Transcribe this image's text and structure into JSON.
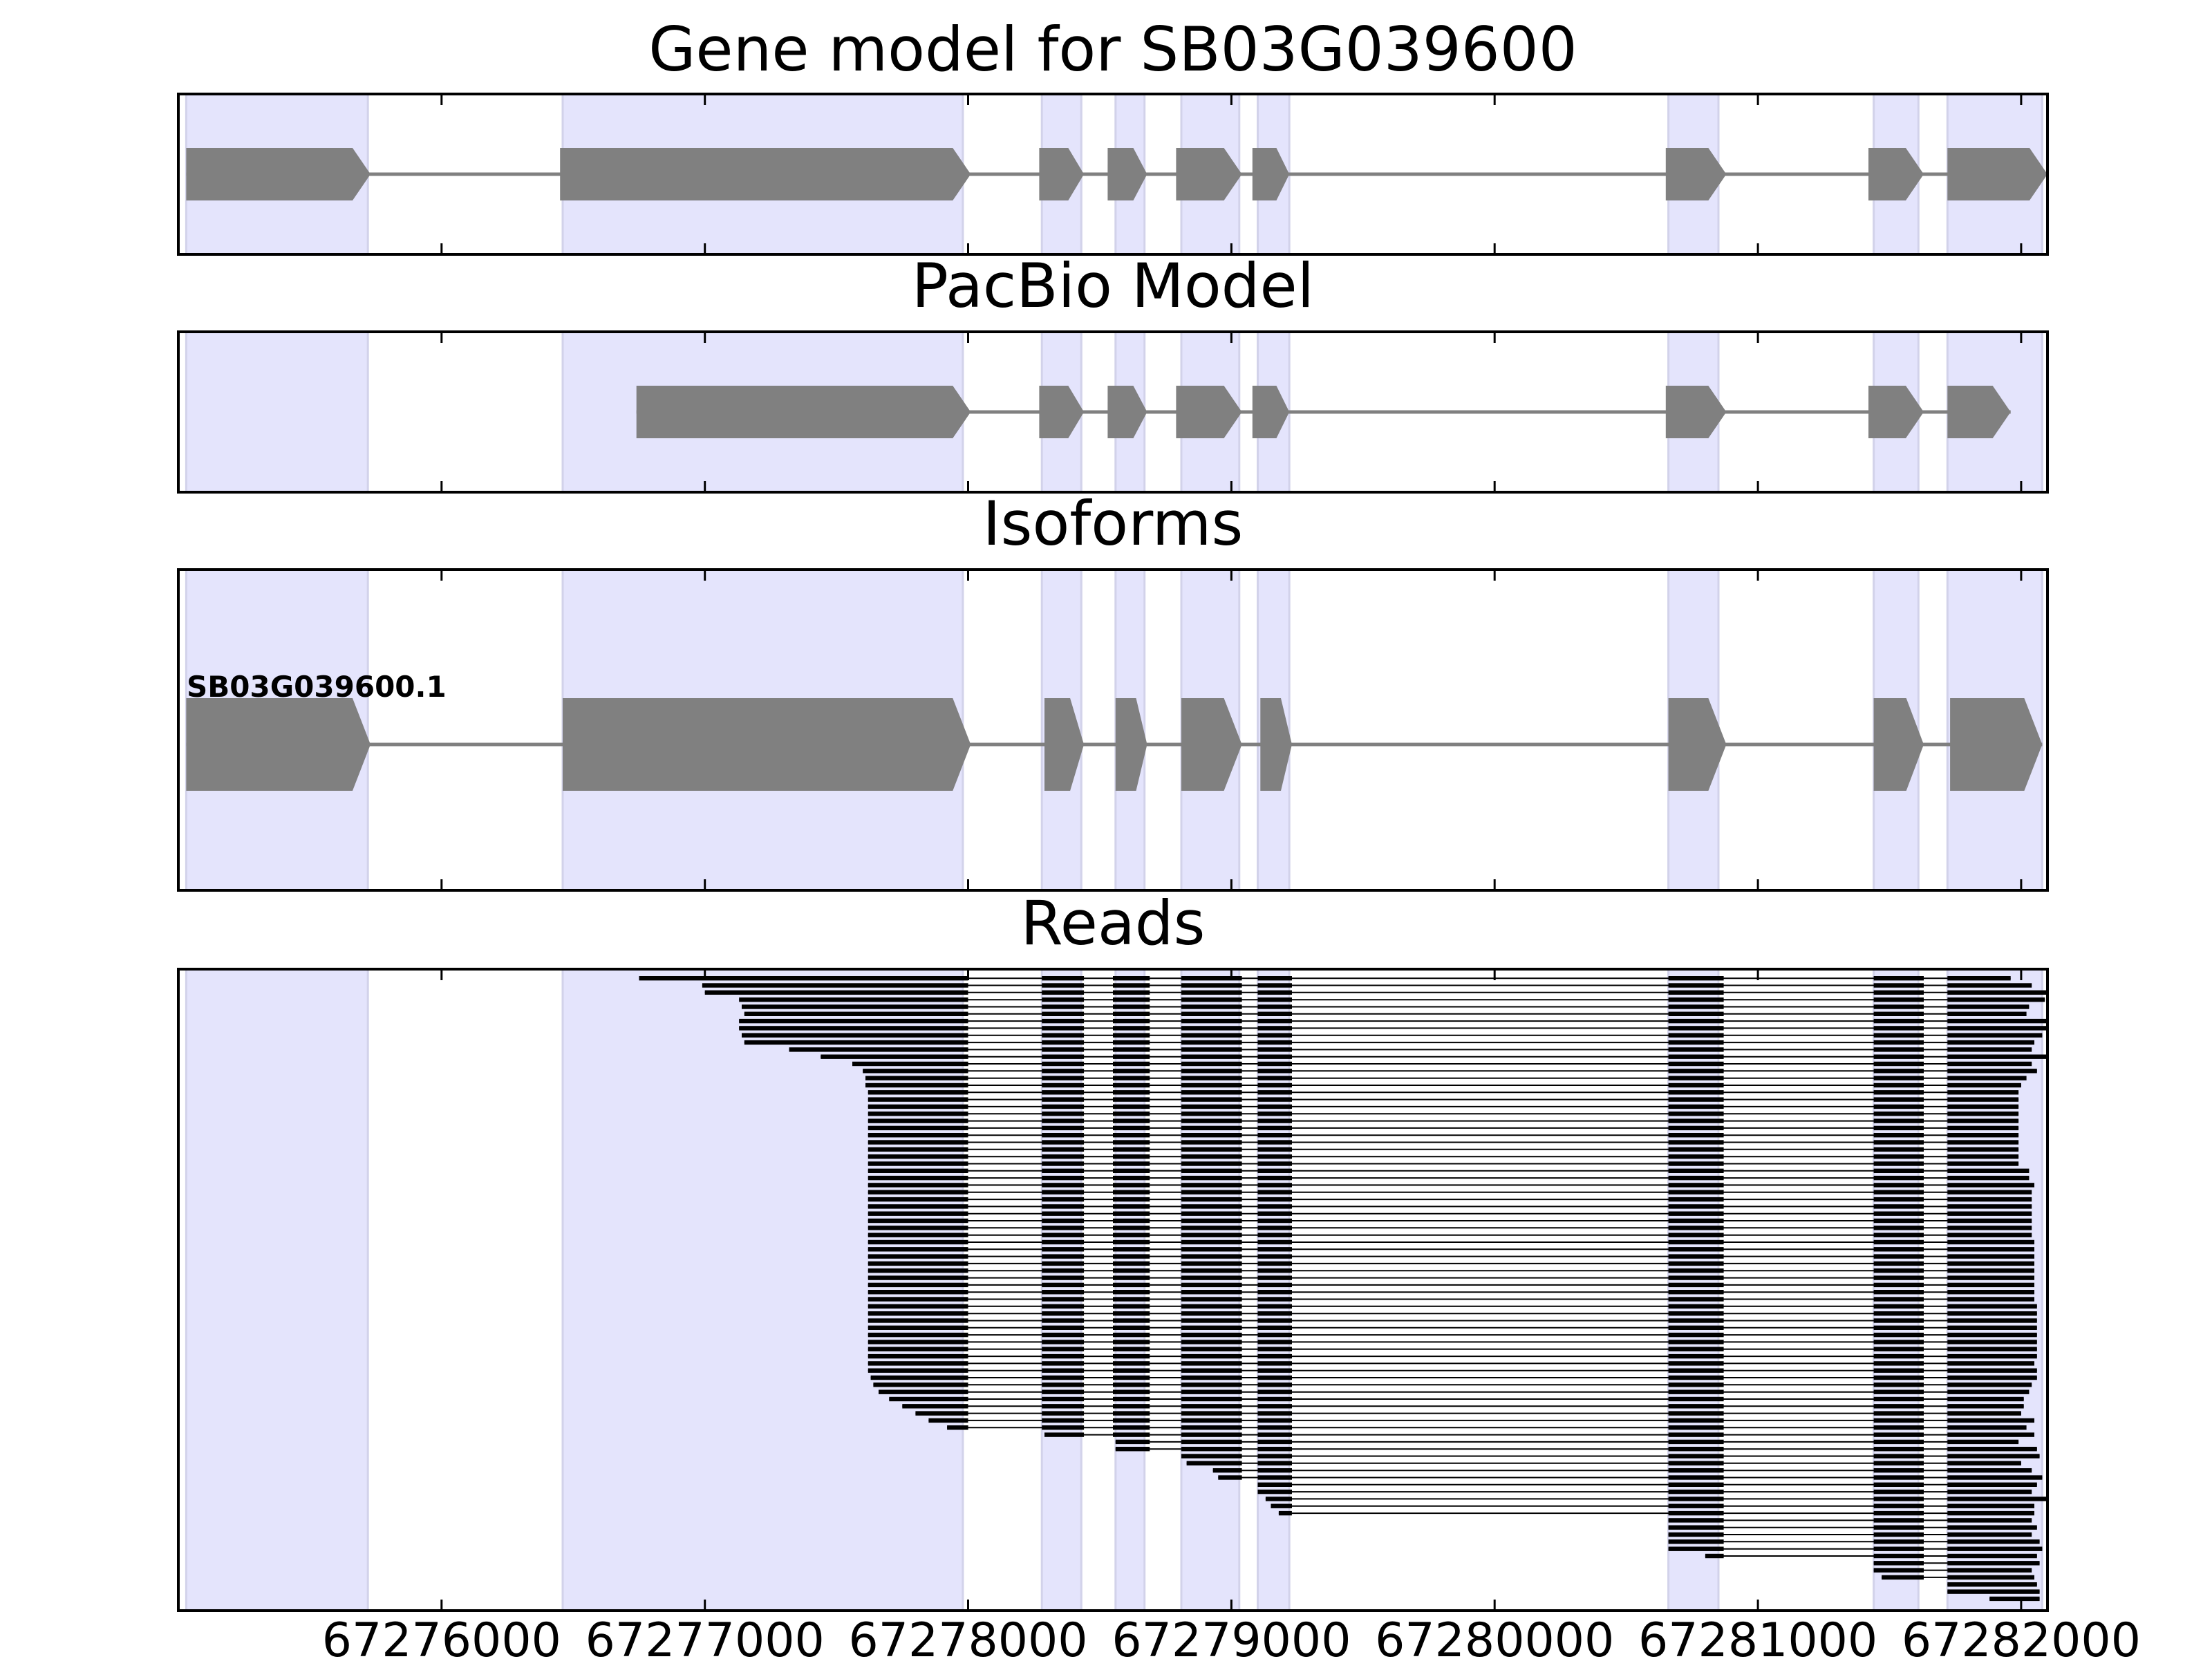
{
  "chart_data": {
    "type": "gene-structure",
    "x_axis": {
      "min": 67275000,
      "max": 67282100,
      "ticks": [
        67276000,
        67277000,
        67278000,
        67279000,
        67280000,
        67281000,
        67282000
      ],
      "tick_labels": [
        "67276000",
        "67277000",
        "67278000",
        "67279000",
        "67280000",
        "67281000",
        "67282000"
      ]
    },
    "colors": {
      "exon": "#808080",
      "intron": "#808080",
      "highlight": "#e4e4fc",
      "highlight_edge": "#d2d2ea",
      "read": "#000000"
    },
    "highlight_exons": [
      [
        67275030,
        67275720
      ],
      [
        67276460,
        67277980
      ],
      [
        67278280,
        67278430
      ],
      [
        67278560,
        67278670
      ],
      [
        67278810,
        67279030
      ],
      [
        67279100,
        67279220
      ],
      [
        67280660,
        67280850
      ],
      [
        67281440,
        67281610
      ],
      [
        67281720,
        67282080
      ]
    ],
    "panels": [
      {
        "title": "Gene model for SB03G039600",
        "kind": "model",
        "exons": [
          [
            67275030,
            67275730
          ],
          [
            67276450,
            67278010
          ],
          [
            67278270,
            67278440
          ],
          [
            67278530,
            67278680
          ],
          [
            67278790,
            67279040
          ],
          [
            67279080,
            67279220
          ],
          [
            67280650,
            67280880
          ],
          [
            67281420,
            67281630
          ],
          [
            67281720,
            67282100
          ]
        ]
      },
      {
        "title": "PacBio Model",
        "kind": "model",
        "exons": [
          [
            67276740,
            67278010
          ],
          [
            67278270,
            67278440
          ],
          [
            67278530,
            67278680
          ],
          [
            67278790,
            67279040
          ],
          [
            67279080,
            67279220
          ],
          [
            67280650,
            67280880
          ],
          [
            67281420,
            67281630
          ],
          [
            67281720,
            67281960
          ]
        ]
      },
      {
        "title": "Isoforms",
        "kind": "isoforms",
        "isoforms": [
          {
            "name": "SB03G039600.1",
            "exons": [
              [
                67275030,
                67275730
              ],
              [
                67276460,
                67278010
              ],
              [
                67278290,
                67278440
              ],
              [
                67278560,
                67278680
              ],
              [
                67278810,
                67279040
              ],
              [
                67279110,
                67279230
              ],
              [
                67280660,
                67280880
              ],
              [
                67281440,
                67281630
              ],
              [
                67281730,
                67282080
              ]
            ]
          }
        ]
      },
      {
        "title": "Reads",
        "kind": "reads",
        "read_count": 88,
        "read_exons": [
          [
            67278000,
            67278000
          ],
          [
            67278280,
            67278440
          ],
          [
            67278550,
            67278690
          ],
          [
            67278810,
            67279040
          ],
          [
            67279100,
            67279230
          ],
          [
            67280660,
            67280870
          ],
          [
            67281440,
            67281630
          ],
          [
            67281720,
            67282100
          ]
        ],
        "read_starts": [
          67276750,
          67276990,
          67277000,
          67277130,
          67277140,
          67277150,
          67277130,
          67277130,
          67277140,
          67277150,
          67277320,
          67277440,
          67277560,
          67277600,
          67277610,
          67277610,
          67277620,
          67277620,
          67277620,
          67277620,
          67277620,
          67277620,
          67277620,
          67277620,
          67277620,
          67277620,
          67277620,
          67277620,
          67277620,
          67277620,
          67277620,
          67277620,
          67277620,
          67277620,
          67277620,
          67277620,
          67277620,
          67277620,
          67277620,
          67277620,
          67277620,
          67277620,
          67277620,
          67277620,
          67277620,
          67277620,
          67277620,
          67277620,
          67277620,
          67277620,
          67277620,
          67277620,
          67277620,
          67277620,
          67277620,
          67277620,
          67277630,
          67277640,
          67277660,
          67277700,
          67277750,
          67277800,
          67277850,
          67277920,
          67278290,
          67278560,
          67278560,
          67278810,
          67278830,
          67278930,
          67278950,
          67279090,
          67279100,
          67279130,
          67279150,
          67279180,
          67280660,
          67280660,
          67280660,
          67280660,
          67280660,
          67280800,
          67281440,
          67281440,
          67281470,
          67281720,
          67281720,
          67281880
        ],
        "read_ends": [
          67281960,
          67282040,
          67282100,
          67282090,
          67282030,
          67282020,
          67282100,
          67282100,
          67282080,
          67282050,
          67282040,
          67282100,
          67282040,
          67282060,
          67282020,
          67282000,
          67281990,
          67281990,
          67281990,
          67281990,
          67281990,
          67281990,
          67281990,
          67281990,
          67281990,
          67281990,
          67281990,
          67282030,
          67282030,
          67282050,
          67282040,
          67282040,
          67282040,
          67282040,
          67282040,
          67282040,
          67282040,
          67282050,
          67282050,
          67282050,
          67282050,
          67282050,
          67282050,
          67282050,
          67282050,
          67282050,
          67282060,
          67282060,
          67282060,
          67282060,
          67282060,
          67282060,
          67282060,
          67282060,
          67282050,
          67282060,
          67282060,
          67282040,
          67282030,
          67282010,
          67282010,
          67282000,
          67282050,
          67282020,
          67282050,
          67281990,
          67282060,
          67282070,
          67282000,
          67282040,
          67282080,
          67282060,
          67282040,
          67282100,
          67282050,
          67282050,
          67282040,
          67282060,
          67282040,
          67282070,
          67282080,
          67282060,
          67282070,
          67282040,
          67282050,
          67282060,
          67282070,
          67282070
        ]
      }
    ]
  }
}
